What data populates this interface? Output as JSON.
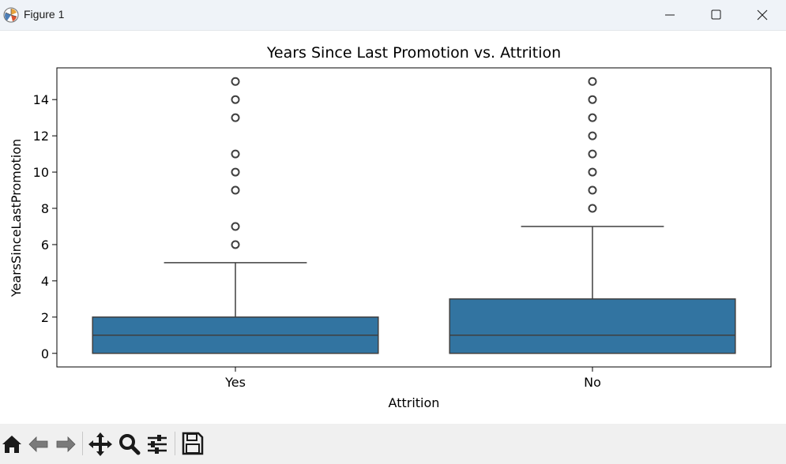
{
  "window": {
    "title": "Figure 1",
    "icons": [
      "app-icon",
      "minimize-icon",
      "maximize-icon",
      "close-icon"
    ]
  },
  "toolbar": {
    "buttons": [
      "home-icon",
      "back-arrow-icon",
      "forward-arrow-icon",
      "pan-move-icon",
      "zoom-magnifier-icon",
      "configure-subplots-icon",
      "save-floppy-icon"
    ]
  },
  "chart_data": {
    "type": "box",
    "title": "Years Since Last Promotion vs. Attrition",
    "xlabel": "Attrition",
    "ylabel": "YearsSinceLastPromotion",
    "categories": [
      "Yes",
      "No"
    ],
    "yticks": [
      0,
      2,
      4,
      6,
      8,
      10,
      12,
      14
    ],
    "ylim": [
      -0.75,
      15.75
    ],
    "grid": false,
    "color": "#3274a1",
    "boxes": [
      {
        "category": "Yes",
        "whisker_low": 0,
        "q1": 0,
        "median": 1,
        "q3": 2,
        "whisker_high": 5,
        "outliers": [
          6,
          7,
          9,
          10,
          11,
          13,
          14,
          15
        ]
      },
      {
        "category": "No",
        "whisker_low": 0,
        "q1": 0,
        "median": 1,
        "q3": 3,
        "whisker_high": 7,
        "outliers": [
          8,
          9,
          10,
          11,
          12,
          13,
          14,
          15
        ]
      }
    ]
  }
}
